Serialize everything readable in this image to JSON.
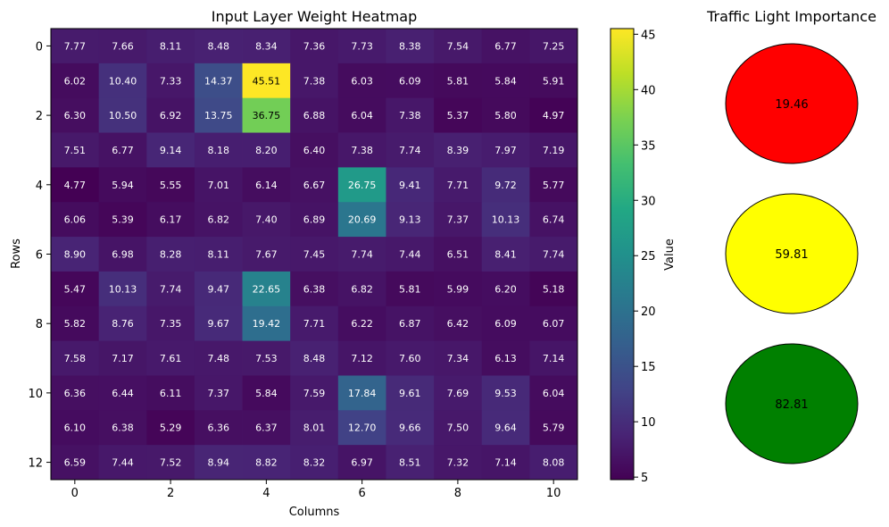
{
  "chart_data": [
    {
      "type": "heatmap",
      "title": "Input Layer Weight Heatmap",
      "xlabel": "Columns",
      "ylabel": "Rows",
      "x_ticks": [
        0,
        2,
        4,
        6,
        8,
        10
      ],
      "y_ticks": [
        0,
        2,
        4,
        6,
        8,
        10,
        12
      ],
      "colormap": "viridis",
      "colorbar": {
        "label": "Value",
        "range": [
          4.77,
          45.51
        ],
        "ticks": [
          5,
          10,
          15,
          20,
          25,
          30,
          35,
          40,
          45
        ]
      },
      "values": [
        [
          7.77,
          7.66,
          8.11,
          8.48,
          8.34,
          7.36,
          7.73,
          8.38,
          7.54,
          6.77,
          7.25
        ],
        [
          6.02,
          10.4,
          7.33,
          14.37,
          45.51,
          7.38,
          6.03,
          6.09,
          5.81,
          5.84,
          5.91
        ],
        [
          6.3,
          10.5,
          6.92,
          13.75,
          36.75,
          6.88,
          6.04,
          7.38,
          5.37,
          5.8,
          4.97
        ],
        [
          7.51,
          6.77,
          9.14,
          8.18,
          8.2,
          6.4,
          7.38,
          7.74,
          8.39,
          7.97,
          7.19
        ],
        [
          4.77,
          5.94,
          5.55,
          7.01,
          6.14,
          6.67,
          26.75,
          9.41,
          7.71,
          9.72,
          5.77
        ],
        [
          6.06,
          5.39,
          6.17,
          6.82,
          7.4,
          6.89,
          20.69,
          9.13,
          7.37,
          10.13,
          6.74
        ],
        [
          8.9,
          6.98,
          8.28,
          8.11,
          7.67,
          7.45,
          7.74,
          7.44,
          6.51,
          8.41,
          7.74
        ],
        [
          5.47,
          10.13,
          7.74,
          9.47,
          22.65,
          6.38,
          6.82,
          5.81,
          5.99,
          6.2,
          5.18
        ],
        [
          5.82,
          8.76,
          7.35,
          9.67,
          19.42,
          7.71,
          6.22,
          6.87,
          6.42,
          6.09,
          6.07
        ],
        [
          7.58,
          7.17,
          7.61,
          7.48,
          7.53,
          8.48,
          7.12,
          7.6,
          7.34,
          6.13,
          7.14
        ],
        [
          6.36,
          6.44,
          6.11,
          7.37,
          5.84,
          7.59,
          17.84,
          9.61,
          7.69,
          9.53,
          6.04
        ],
        [
          6.1,
          6.38,
          5.29,
          6.36,
          6.37,
          8.01,
          12.7,
          9.66,
          7.5,
          9.64,
          5.79
        ],
        [
          6.59,
          7.44,
          7.52,
          8.94,
          8.82,
          8.32,
          6.97,
          8.51,
          7.32,
          7.14,
          8.08
        ]
      ]
    },
    {
      "type": "other",
      "title": "Traffic Light Importance",
      "lights": [
        {
          "color": "#ff0000",
          "value": "19.46"
        },
        {
          "color": "#ffff00",
          "value": "59.81"
        },
        {
          "color": "#008000",
          "value": "82.81"
        }
      ]
    }
  ]
}
